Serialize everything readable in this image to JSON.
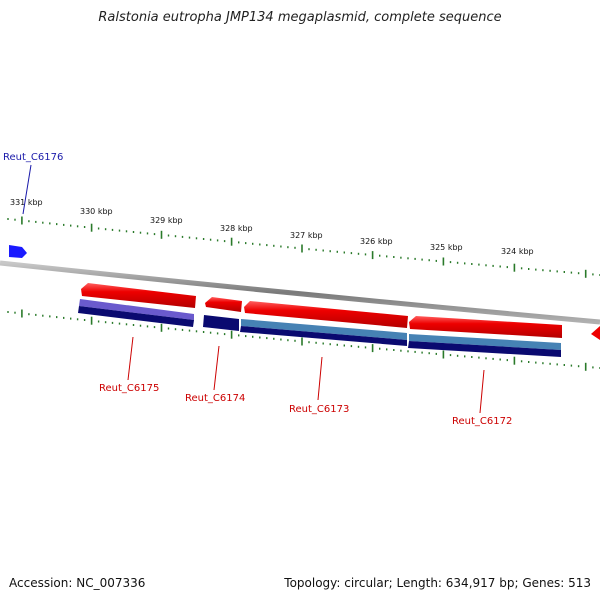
{
  "title": "Ralstonia eutropha JMP134 megaplasmid, complete sequence",
  "footer": {
    "accession": "Accession: NC_007336",
    "summary": "Topology: circular; Length: 634,917 bp; Genes: 513"
  },
  "colors": {
    "forward_feature": "#1a1aff",
    "reverse_feature": "#ee0000",
    "backbone": "#8a8a8a",
    "tick": "#2a7a2a",
    "gene_label_forward": "#1a1aaa",
    "gene_label_reverse": "#cc0000",
    "cds_dark": "#0a0a70",
    "cds_light_a": "#6a5acd",
    "cds_light_b": "#4682b4"
  },
  "axis": {
    "unit": "kbp",
    "kbp_labels": [
      "331 kbp",
      "330 kbp",
      "329 kbp",
      "328 kbp",
      "327 kbp",
      "326 kbp",
      "325 kbp",
      "324 kbp"
    ]
  },
  "genes": [
    {
      "name": "Reut_C6176",
      "strand": "forward"
    },
    {
      "name": "Reut_C6175",
      "strand": "reverse"
    },
    {
      "name": "Reut_C6174",
      "strand": "reverse"
    },
    {
      "name": "Reut_C6173",
      "strand": "reverse"
    },
    {
      "name": "Reut_C6172",
      "strand": "reverse"
    }
  ]
}
